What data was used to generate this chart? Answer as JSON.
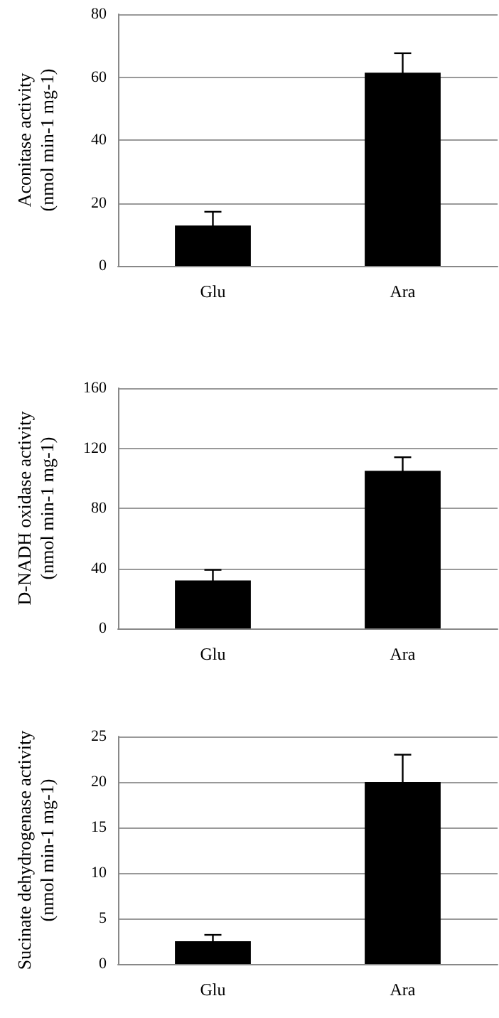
{
  "chart_data": [
    {
      "type": "bar",
      "ylabel": "Aconitase activity\n(nmol min-1 mg-1)",
      "categories": [
        "Glu",
        "Ara"
      ],
      "values": [
        12.8,
        61.4
      ],
      "errors": [
        4.4,
        6.2
      ],
      "color": "#000000",
      "ylim": [
        0,
        80
      ],
      "yticks": [
        0,
        20,
        40,
        60,
        80
      ],
      "grid": "y"
    },
    {
      "type": "bar",
      "ylabel": "D-NADH oxidase activity\n(nmol min-1 mg-1)",
      "categories": [
        "Glu",
        "Ara"
      ],
      "values": [
        32,
        105
      ],
      "errors": [
        7,
        9
      ],
      "color": "#000000",
      "ylim": [
        0,
        160
      ],
      "yticks": [
        0,
        40,
        80,
        120,
        160
      ],
      "grid": "y"
    },
    {
      "type": "bar",
      "ylabel": "Sucinate dehydrogenase activity\n(nmol min-1 mg-1)",
      "categories": [
        "Glu",
        "Ara"
      ],
      "values": [
        2.5,
        20
      ],
      "errors": [
        0.7,
        3
      ],
      "color": "#000000",
      "ylim": [
        0,
        25
      ],
      "yticks": [
        0,
        5,
        10,
        15,
        20,
        25
      ],
      "grid": "y"
    }
  ]
}
